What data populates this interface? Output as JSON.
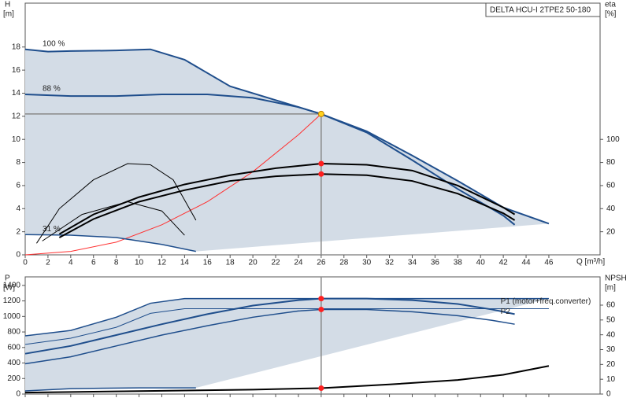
{
  "chart_data": [
    {
      "type": "line",
      "title": "DELTA HCU-I 2TPE2 50-180",
      "y_label": "H",
      "y_unit": "[m]",
      "y2_label": "eta",
      "y2_unit": "[%]",
      "x_label": "Q [m³/h]",
      "xlim": [
        0,
        50.5
      ],
      "xticks": [
        0,
        2,
        4,
        6,
        8,
        10,
        12,
        14,
        16,
        18,
        20,
        22,
        24,
        26,
        28,
        30,
        32,
        34,
        36,
        38,
        40,
        42,
        44,
        46
      ],
      "ylim": [
        0,
        21.8
      ],
      "yticks": [
        0,
        2,
        4,
        6,
        8,
        10,
        12,
        14,
        16,
        18
      ],
      "y2lim": [
        0,
        218
      ],
      "y2ticks": [
        20,
        40,
        60,
        80,
        100
      ],
      "grid": false,
      "range_fill": "#d3dce6",
      "series": [
        {
          "name": "100 %",
          "color": "#1f4e8c",
          "width": 2,
          "x": [
            0,
            2,
            4,
            8,
            11,
            14,
            18,
            22,
            26,
            30,
            34,
            38,
            42,
            46
          ],
          "values": [
            17.8,
            17.6,
            17.65,
            17.7,
            17.8,
            16.9,
            14.6,
            13.4,
            12.2,
            10.7,
            8.6,
            6.4,
            4.1,
            2.7
          ]
        },
        {
          "name": "88 %",
          "color": "#1f4e8c",
          "width": 2,
          "x": [
            0,
            4,
            8,
            12,
            16,
            20,
            24,
            26,
            30,
            34,
            38,
            42,
            43
          ],
          "values": [
            13.9,
            13.75,
            13.75,
            13.9,
            13.9,
            13.6,
            12.8,
            12.2,
            10.6,
            8.2,
            5.7,
            3.4,
            2.6
          ]
        },
        {
          "color": "#ff3030",
          "width": 1,
          "x": [
            0,
            4,
            8,
            12,
            16,
            20,
            24,
            26
          ],
          "values": [
            0,
            0.3,
            1.1,
            2.6,
            4.6,
            7.2,
            10.4,
            12.2
          ]
        },
        {
          "name": "31 %",
          "color": "#1f4e8c",
          "width": 1.5,
          "x": [
            0,
            4,
            8,
            12,
            15
          ],
          "values": [
            1.75,
            1.7,
            1.5,
            0.9,
            0.3
          ]
        },
        {
          "color": "#000000",
          "width": 2,
          "axis": "y2",
          "x": [
            3,
            6,
            10,
            14,
            18,
            22,
            26,
            30,
            34,
            38,
            42,
            43
          ],
          "values": [
            18,
            35,
            50,
            61,
            69,
            75,
            79,
            78,
            73,
            60,
            41,
            35
          ]
        },
        {
          "color": "#000000",
          "width": 2,
          "axis": "y2",
          "x": [
            3,
            6,
            10,
            14,
            18,
            22,
            26,
            30,
            34,
            38,
            42,
            43
          ],
          "values": [
            15,
            31,
            46,
            56,
            64,
            68,
            70,
            69,
            64,
            53,
            36,
            30
          ]
        },
        {
          "color": "#000000",
          "width": 1,
          "axis": "y2",
          "x": [
            1,
            3,
            6,
            9,
            11,
            13,
            15
          ],
          "values": [
            10,
            40,
            65,
            79,
            78,
            65,
            30
          ]
        },
        {
          "color": "#000000",
          "width": 1,
          "axis": "y2",
          "x": [
            1.5,
            5,
            9,
            12,
            14
          ],
          "values": [
            12,
            35,
            46,
            38,
            17
          ]
        }
      ],
      "markers": [
        {
          "x": 26,
          "y": 12.2,
          "color": "#ffd21f"
        },
        {
          "x": 26,
          "y": 79,
          "color": "#ff2020",
          "axis": "y2"
        },
        {
          "x": 26,
          "y": 70,
          "color": "#ff2020",
          "axis": "y2"
        }
      ]
    },
    {
      "type": "line",
      "y_label": "P",
      "y_unit": "[W]",
      "y2_label": "NPSH",
      "y2_unit": "[m]",
      "xlim": [
        0,
        50.5
      ],
      "xticks": [
        0,
        2,
        4,
        6,
        8,
        10,
        12,
        14,
        16,
        18,
        20,
        22,
        24,
        26,
        28,
        30,
        32,
        34,
        36,
        38,
        40,
        42,
        44,
        46
      ],
      "ylim": [
        0,
        1510
      ],
      "yticks": [
        0,
        200,
        400,
        600,
        800,
        1000,
        1200,
        1400
      ],
      "y2lim": [
        0,
        79.1
      ],
      "y2ticks": [
        0,
        10,
        20,
        30,
        40,
        50,
        60
      ],
      "grid": false,
      "range_fill": "#d3dce6",
      "series": [
        {
          "color": "#1f4e8c",
          "width": 1.5,
          "x": [
            0,
            4,
            8,
            11,
            14,
            46
          ],
          "values": [
            750,
            820,
            990,
            1170,
            1230,
            1230
          ]
        },
        {
          "color": "#1f4e8c",
          "width": 1,
          "x": [
            0,
            4,
            8,
            11,
            14,
            46
          ],
          "values": [
            640,
            720,
            860,
            1040,
            1100,
            1100
          ]
        },
        {
          "name": "P1 (motor+freq.converter)",
          "color": "#1f4e8c",
          "width": 2,
          "x": [
            0,
            4,
            8,
            12,
            16,
            20,
            24,
            26,
            30,
            34,
            38,
            41,
            43
          ],
          "values": [
            520,
            620,
            760,
            900,
            1030,
            1140,
            1210,
            1230,
            1230,
            1210,
            1160,
            1090,
            1030
          ]
        },
        {
          "name": "P2",
          "color": "#1f4e8c",
          "width": 1.5,
          "x": [
            0,
            4,
            8,
            12,
            16,
            20,
            24,
            26,
            30,
            34,
            38,
            41,
            43
          ],
          "values": [
            390,
            480,
            620,
            760,
            880,
            990,
            1070,
            1090,
            1090,
            1060,
            1010,
            950,
            900
          ]
        },
        {
          "color": "#1f4e8c",
          "width": 1.5,
          "x": [
            0,
            4,
            10,
            15
          ],
          "values": [
            40,
            70,
            80,
            80
          ]
        },
        {
          "color": "#000000",
          "width": 2,
          "axis": "y2",
          "x": [
            0,
            10,
            20,
            26,
            32,
            38,
            42,
            46
          ],
          "values": [
            1,
            2,
            3,
            4,
            6.5,
            9.5,
            13,
            19
          ]
        }
      ],
      "markers": [
        {
          "x": 26,
          "y": 1230,
          "color": "#ff2020"
        },
        {
          "x": 26,
          "y": 1090,
          "color": "#ff2020"
        },
        {
          "x": 26,
          "y": 4,
          "color": "#ff2020",
          "axis": "y2"
        }
      ]
    }
  ]
}
